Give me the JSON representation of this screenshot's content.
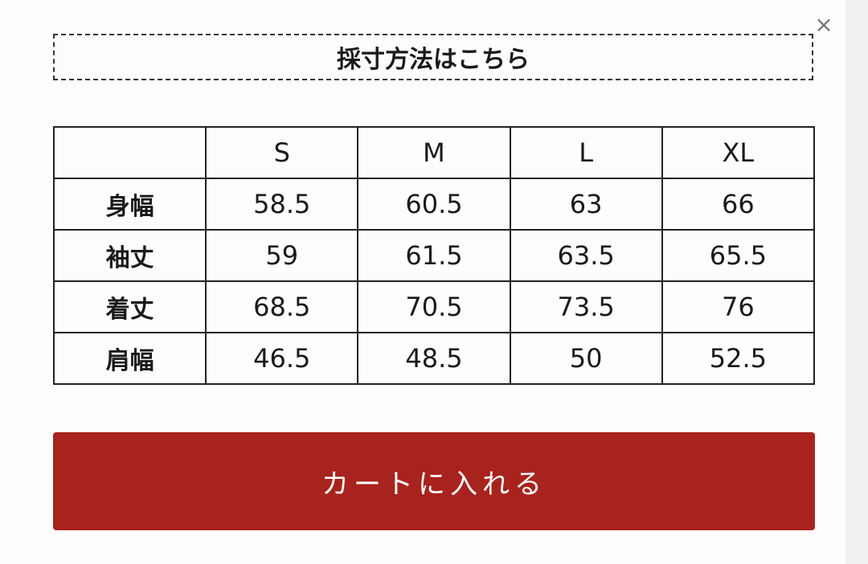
{
  "close_icon": "close-icon",
  "measure_link": "採寸方法はこちら",
  "table": {
    "headers": [
      "",
      "S",
      "M",
      "L",
      "XL"
    ],
    "rows": [
      {
        "label": "身幅",
        "values": [
          "58.5",
          "60.5",
          "63",
          "66"
        ]
      },
      {
        "label": "袖丈",
        "values": [
          "59",
          "61.5",
          "63.5",
          "65.5"
        ]
      },
      {
        "label": "着丈",
        "values": [
          "68.5",
          "70.5",
          "73.5",
          "76"
        ]
      },
      {
        "label": "肩幅",
        "values": [
          "46.5",
          "48.5",
          "50",
          "52.5"
        ]
      }
    ]
  },
  "cart_button": "カートに入れる",
  "colors": {
    "cart_button": "#a8231d"
  }
}
